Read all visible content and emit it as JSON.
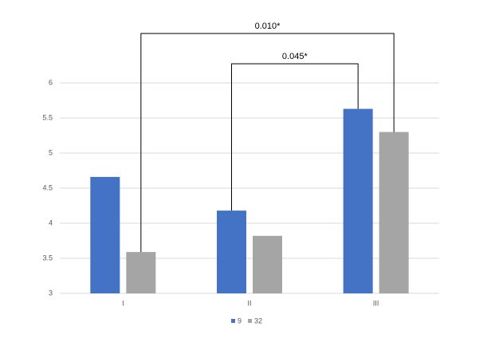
{
  "chart_data": {
    "type": "bar",
    "categories": [
      "I",
      "II",
      "III"
    ],
    "series": [
      {
        "name": "9",
        "color": "#4472c4",
        "values": [
          4.66,
          4.18,
          5.63
        ]
      },
      {
        "name": "32",
        "color": "#a5a5a5",
        "values": [
          3.59,
          3.82,
          5.3
        ]
      }
    ],
    "ylim": [
      3,
      6
    ],
    "yticks": [
      3,
      3.5,
      4,
      4.5,
      5,
      5.5,
      6
    ],
    "grid": true,
    "annotations": [
      "0.010*",
      "0.045*"
    ],
    "legend": "bottom"
  }
}
